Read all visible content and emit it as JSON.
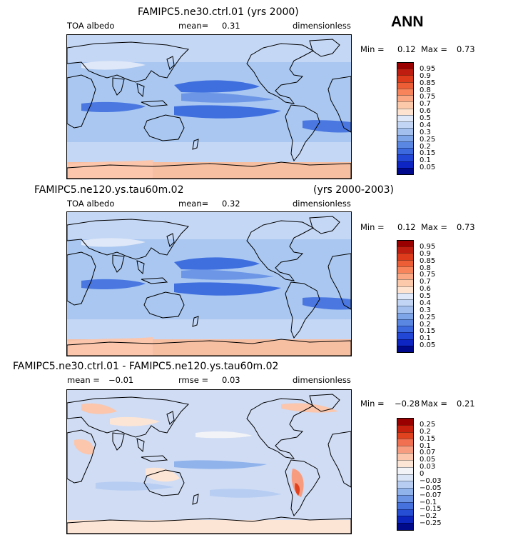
{
  "season": "ANN",
  "colors": {
    "abs": [
      "#9a0000",
      "#bf1d10",
      "#de3a1c",
      "#ee5e36",
      "#f7845a",
      "#fba783",
      "#fdc9ab",
      "#fde3d0",
      "#dfe8f8",
      "#c2d5f4",
      "#a2bfee",
      "#7da5e8",
      "#5a87e2",
      "#3c6ade",
      "#2246d6",
      "#0d25c2",
      "#00088c"
    ],
    "diff": [
      "#9a0000",
      "#c8200f",
      "#e0421f",
      "#f27052",
      "#f89c80",
      "#fbc6ac",
      "#fde5d6",
      "#f1f3f7",
      "#d9e4f6",
      "#b7cdf2",
      "#91b3ec",
      "#6c94e5",
      "#4672de",
      "#264ed4",
      "#0c26bd",
      "#000a8a"
    ],
    "land": "#a9c7f0",
    "ocean_low": "#3f6fdf",
    "ocean_mid": "#6d97e6",
    "ocean_high": "#9dbcee",
    "polar": "#f7bfa2"
  },
  "panels": [
    {
      "title": "FAMIPC5.ne30.ctrl.01 (yrs 2000)",
      "left_label": "TOA albedo",
      "mean_label": "mean=",
      "mean_value": "0.31",
      "units": "dimensionless",
      "min_label": "Min =",
      "min_value": "0.12",
      "max_label": "Max =",
      "max_value": "0.73",
      "levels": [
        "0.95",
        "0.9",
        "0.85",
        "0.8",
        "0.75",
        "0.7",
        "0.6",
        "0.5",
        "0.4",
        "0.3",
        "0.25",
        "0.2",
        "0.15",
        "0.1",
        "0.05"
      ]
    },
    {
      "title": "FAMIPC5.ne120.ys.tau60m.02",
      "title_right": "(yrs 2000-2003)",
      "left_label": "TOA albedo",
      "mean_label": "mean=",
      "mean_value": "0.32",
      "units": "dimensionless",
      "min_label": "Min =",
      "min_value": "0.12",
      "max_label": "Max =",
      "max_value": "0.73",
      "levels": [
        "0.95",
        "0.9",
        "0.85",
        "0.8",
        "0.75",
        "0.7",
        "0.6",
        "0.5",
        "0.4",
        "0.3",
        "0.25",
        "0.2",
        "0.15",
        "0.1",
        "0.05"
      ]
    },
    {
      "title": "FAMIPC5.ne30.ctrl.01 - FAMIPC5.ne120.ys.tau60m.02",
      "mean_label": "mean =",
      "mean_value": "−0.01",
      "rmse_label": "rmse =",
      "rmse_value": "0.03",
      "units": "dimensionless",
      "min_label": "Min =",
      "min_value": "−0.28",
      "max_label": "Max =",
      "max_value": "0.21",
      "levels": [
        "0.25",
        "0.2",
        "0.15",
        "0.1",
        "0.07",
        "0.05",
        "0.03",
        "0",
        "−0.03",
        "−0.05",
        "−0.07",
        "−0.1",
        "−0.15",
        "−0.2",
        "−0.25"
      ]
    }
  ]
}
